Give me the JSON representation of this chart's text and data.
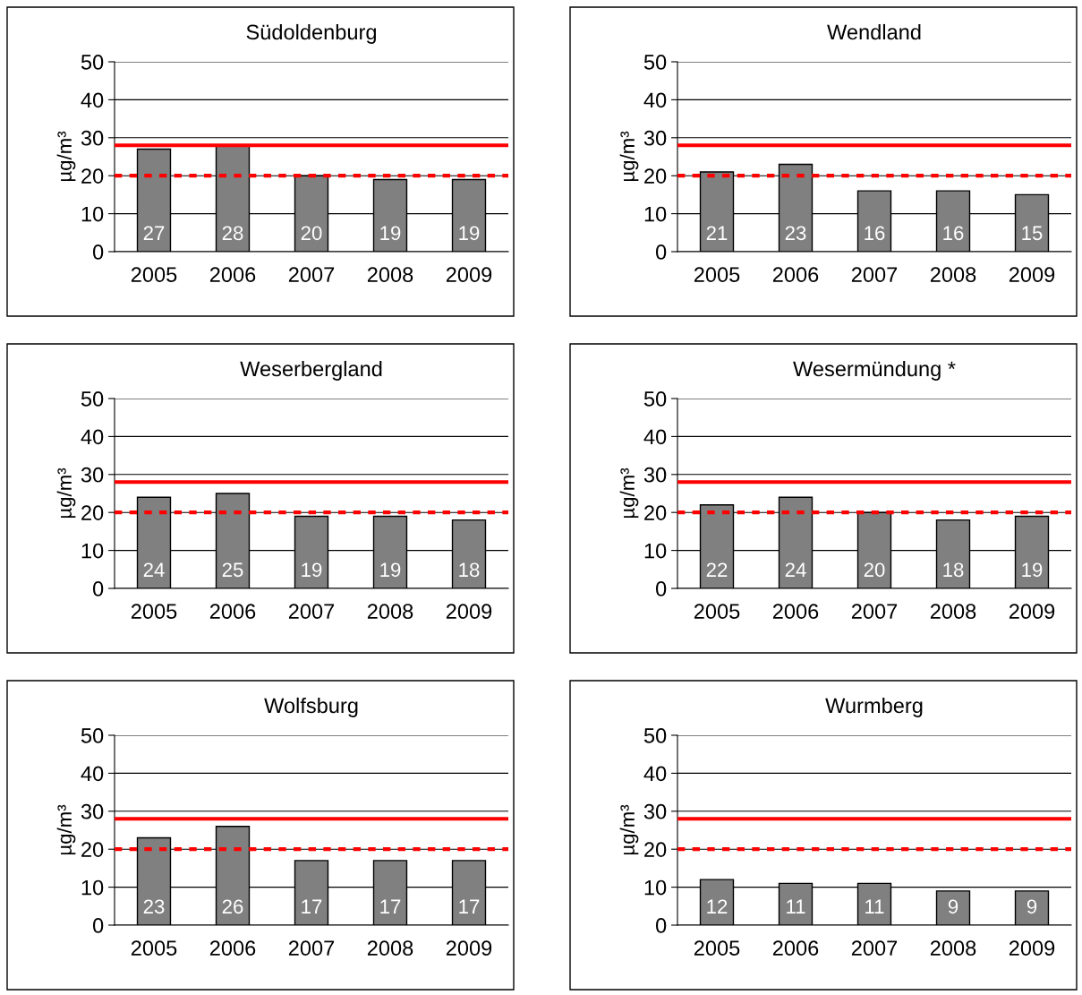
{
  "chart_data": [
    {
      "type": "bar",
      "title": "Südoldenburg",
      "ylabel": "µg/m³",
      "categories": [
        "2005",
        "2006",
        "2007",
        "2008",
        "2009"
      ],
      "values": [
        27,
        28,
        20,
        19,
        19
      ],
      "color": "#808080",
      "ylim": [
        0,
        50
      ],
      "yticks": [
        0,
        10,
        20,
        30,
        40,
        50
      ],
      "grid": "y",
      "data_labels": true,
      "ref_lines": [
        {
          "axis": "y",
          "value": 28,
          "color": "#ff0000",
          "line_style": "solid"
        },
        {
          "axis": "y",
          "value": 20,
          "color": "#ff0000",
          "line_style": "dashed"
        }
      ]
    },
    {
      "type": "bar",
      "title": "Wendland",
      "ylabel": "µg/m³",
      "categories": [
        "2005",
        "2006",
        "2007",
        "2008",
        "2009"
      ],
      "values": [
        21,
        23,
        16,
        16,
        15
      ],
      "color": "#808080",
      "ylim": [
        0,
        50
      ],
      "yticks": [
        0,
        10,
        20,
        30,
        40,
        50
      ],
      "grid": "y",
      "data_labels": true,
      "ref_lines": [
        {
          "axis": "y",
          "value": 28,
          "color": "#ff0000",
          "line_style": "solid"
        },
        {
          "axis": "y",
          "value": 20,
          "color": "#ff0000",
          "line_style": "dashed"
        }
      ]
    },
    {
      "type": "bar",
      "title": "Weserbergland",
      "ylabel": "µg/m³",
      "categories": [
        "2005",
        "2006",
        "2007",
        "2008",
        "2009"
      ],
      "values": [
        24,
        25,
        19,
        19,
        18
      ],
      "color": "#808080",
      "ylim": [
        0,
        50
      ],
      "yticks": [
        0,
        10,
        20,
        30,
        40,
        50
      ],
      "grid": "y",
      "data_labels": true,
      "ref_lines": [
        {
          "axis": "y",
          "value": 28,
          "color": "#ff0000",
          "line_style": "solid"
        },
        {
          "axis": "y",
          "value": 20,
          "color": "#ff0000",
          "line_style": "dashed"
        }
      ]
    },
    {
      "type": "bar",
      "title": "Wesermündung *",
      "ylabel": "µg/m³",
      "categories": [
        "2005",
        "2006",
        "2007",
        "2008",
        "2009"
      ],
      "values": [
        22,
        24,
        20,
        18,
        19
      ],
      "color": "#808080",
      "ylim": [
        0,
        50
      ],
      "yticks": [
        0,
        10,
        20,
        30,
        40,
        50
      ],
      "grid": "y",
      "data_labels": true,
      "ref_lines": [
        {
          "axis": "y",
          "value": 28,
          "color": "#ff0000",
          "line_style": "solid"
        },
        {
          "axis": "y",
          "value": 20,
          "color": "#ff0000",
          "line_style": "dashed"
        }
      ]
    },
    {
      "type": "bar",
      "title": "Wolfsburg",
      "ylabel": "µg/m³",
      "categories": [
        "2005",
        "2006",
        "2007",
        "2008",
        "2009"
      ],
      "values": [
        23,
        26,
        17,
        17,
        17
      ],
      "color": "#808080",
      "ylim": [
        0,
        50
      ],
      "yticks": [
        0,
        10,
        20,
        30,
        40,
        50
      ],
      "grid": "y",
      "data_labels": true,
      "ref_lines": [
        {
          "axis": "y",
          "value": 28,
          "color": "#ff0000",
          "line_style": "solid"
        },
        {
          "axis": "y",
          "value": 20,
          "color": "#ff0000",
          "line_style": "dashed"
        }
      ]
    },
    {
      "type": "bar",
      "title": "Wurmberg",
      "ylabel": "µg/m³",
      "categories": [
        "2005",
        "2006",
        "2007",
        "2008",
        "2009"
      ],
      "values": [
        12,
        11,
        11,
        9,
        9
      ],
      "color": "#808080",
      "ylim": [
        0,
        50
      ],
      "yticks": [
        0,
        10,
        20,
        30,
        40,
        50
      ],
      "grid": "y",
      "data_labels": true,
      "ref_lines": [
        {
          "axis": "y",
          "value": 28,
          "color": "#ff0000",
          "line_style": "solid"
        },
        {
          "axis": "y",
          "value": 20,
          "color": "#ff0000",
          "line_style": "dashed"
        }
      ]
    }
  ]
}
